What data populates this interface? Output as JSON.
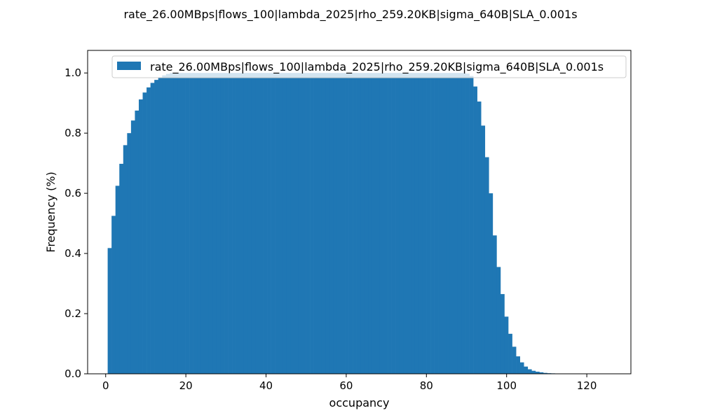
{
  "chart_data": {
    "type": "bar",
    "title": "rate_26.00MBps|flows_100|lambda_2025|rho_259.20KB|sigma_640B|SLA_0.001s",
    "xlabel": "occupancy",
    "ylabel": "Frequency (%)",
    "xlim": [
      -4.5,
      131
    ],
    "ylim": [
      0,
      1.075
    ],
    "xticks": [
      0,
      20,
      40,
      60,
      80,
      100,
      120
    ],
    "yticks": [
      0.0,
      0.2,
      0.4,
      0.6,
      0.8,
      1.0
    ],
    "xtick_labels": [
      "0",
      "20",
      "40",
      "60",
      "80",
      "100",
      "120"
    ],
    "ytick_labels": [
      "0.0",
      "0.2",
      "0.4",
      "0.6",
      "0.8",
      "1.0"
    ],
    "grid": false,
    "legend_position": "top-right",
    "color": "#1f77b4",
    "series": [
      {
        "name": "rate_26.00MBps|flows_100|lambda_2025|rho_259.20KB|sigma_640B|SLA_0.001s",
        "bin_width": 0.97,
        "bin_start": 0.5,
        "values": [
          0.418,
          0.525,
          0.625,
          0.698,
          0.76,
          0.8,
          0.842,
          0.875,
          0.912,
          0.935,
          0.952,
          0.967,
          0.977,
          0.985,
          0.992,
          0.997,
          1.0,
          1.0,
          1.0,
          1.0,
          1.0,
          1.0,
          1.0,
          1.0,
          1.0,
          1.0,
          1.0,
          1.0,
          1.0,
          1.0,
          1.0,
          1.0,
          1.0,
          1.0,
          1.0,
          1.0,
          1.0,
          1.0,
          1.0,
          1.0,
          1.0,
          1.0,
          1.0,
          1.0,
          1.0,
          1.0,
          1.0,
          1.0,
          1.0,
          1.0,
          1.0,
          1.0,
          1.0,
          1.0,
          1.0,
          1.0,
          1.0,
          1.0,
          1.0,
          1.0,
          1.0,
          1.0,
          1.0,
          1.0,
          1.0,
          1.0,
          1.0,
          1.0,
          1.0,
          1.0,
          1.0,
          1.0,
          1.0,
          1.0,
          1.0,
          1.0,
          1.0,
          1.0,
          1.0,
          1.0,
          1.0,
          1.0,
          1.0,
          1.0,
          1.0,
          1.0,
          1.0,
          1.0,
          1.0,
          1.0,
          1.0,
          1.0,
          0.998,
          0.99,
          0.955,
          0.905,
          0.825,
          0.72,
          0.6,
          0.46,
          0.355,
          0.265,
          0.19,
          0.133,
          0.09,
          0.058,
          0.038,
          0.024,
          0.015,
          0.01,
          0.007,
          0.005,
          0.003,
          0.002,
          0.0015,
          0.001,
          0.0007,
          0.0005,
          0.0004,
          0.0003,
          0.0002,
          0.0002,
          0.0001,
          0.0001,
          0.0001,
          0.0001
        ]
      }
    ]
  }
}
